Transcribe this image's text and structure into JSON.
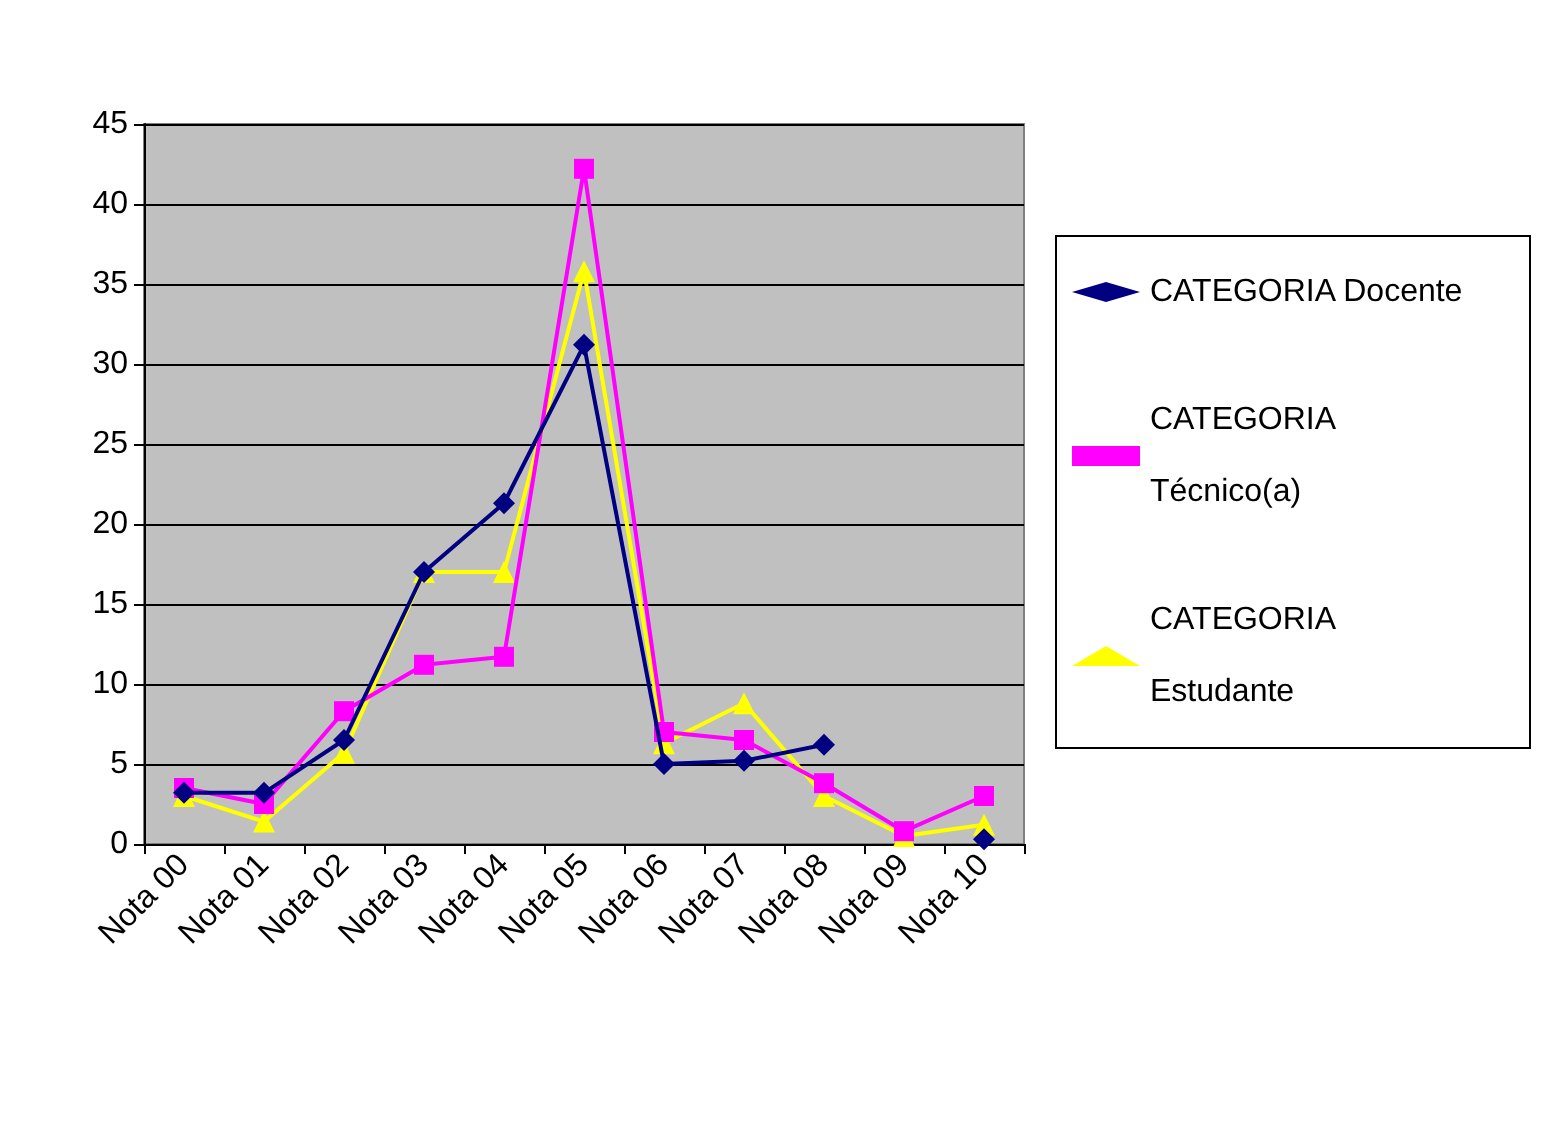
{
  "chart_data": {
    "type": "line",
    "categories": [
      "Nota 00",
      "Nota 01",
      "Nota 02",
      "Nota 03",
      "Nota 04",
      "Nota 05",
      "Nota 06",
      "Nota 07",
      "Nota 08",
      "Nota 09",
      "Nota 10"
    ],
    "series": [
      {
        "name": "CATEGORIA Docente",
        "color": "#000080",
        "marker": "diamond",
        "values": [
          3.2,
          3.2,
          6.5,
          17,
          21.3,
          31.2,
          5,
          5.2,
          6.2,
          null,
          0.3
        ]
      },
      {
        "name": "CATEGORIA Técnico(a)",
        "color": "#ff00ff",
        "marker": "square",
        "values": [
          3.5,
          2.5,
          8.3,
          11.2,
          11.7,
          42.2,
          7,
          6.5,
          3.8,
          0.8,
          3
        ]
      },
      {
        "name": "CATEGORIA Estudante",
        "color": "#ffff00",
        "marker": "triangle",
        "values": [
          3,
          1.4,
          5.7,
          17,
          17,
          35.8,
          6.3,
          8.8,
          3,
          0.5,
          1.2
        ]
      }
    ],
    "ylim": [
      0,
      45
    ],
    "yticks": [
      0,
      5,
      10,
      15,
      20,
      25,
      30,
      35,
      40,
      45
    ],
    "grid": "y",
    "legend": "right"
  }
}
